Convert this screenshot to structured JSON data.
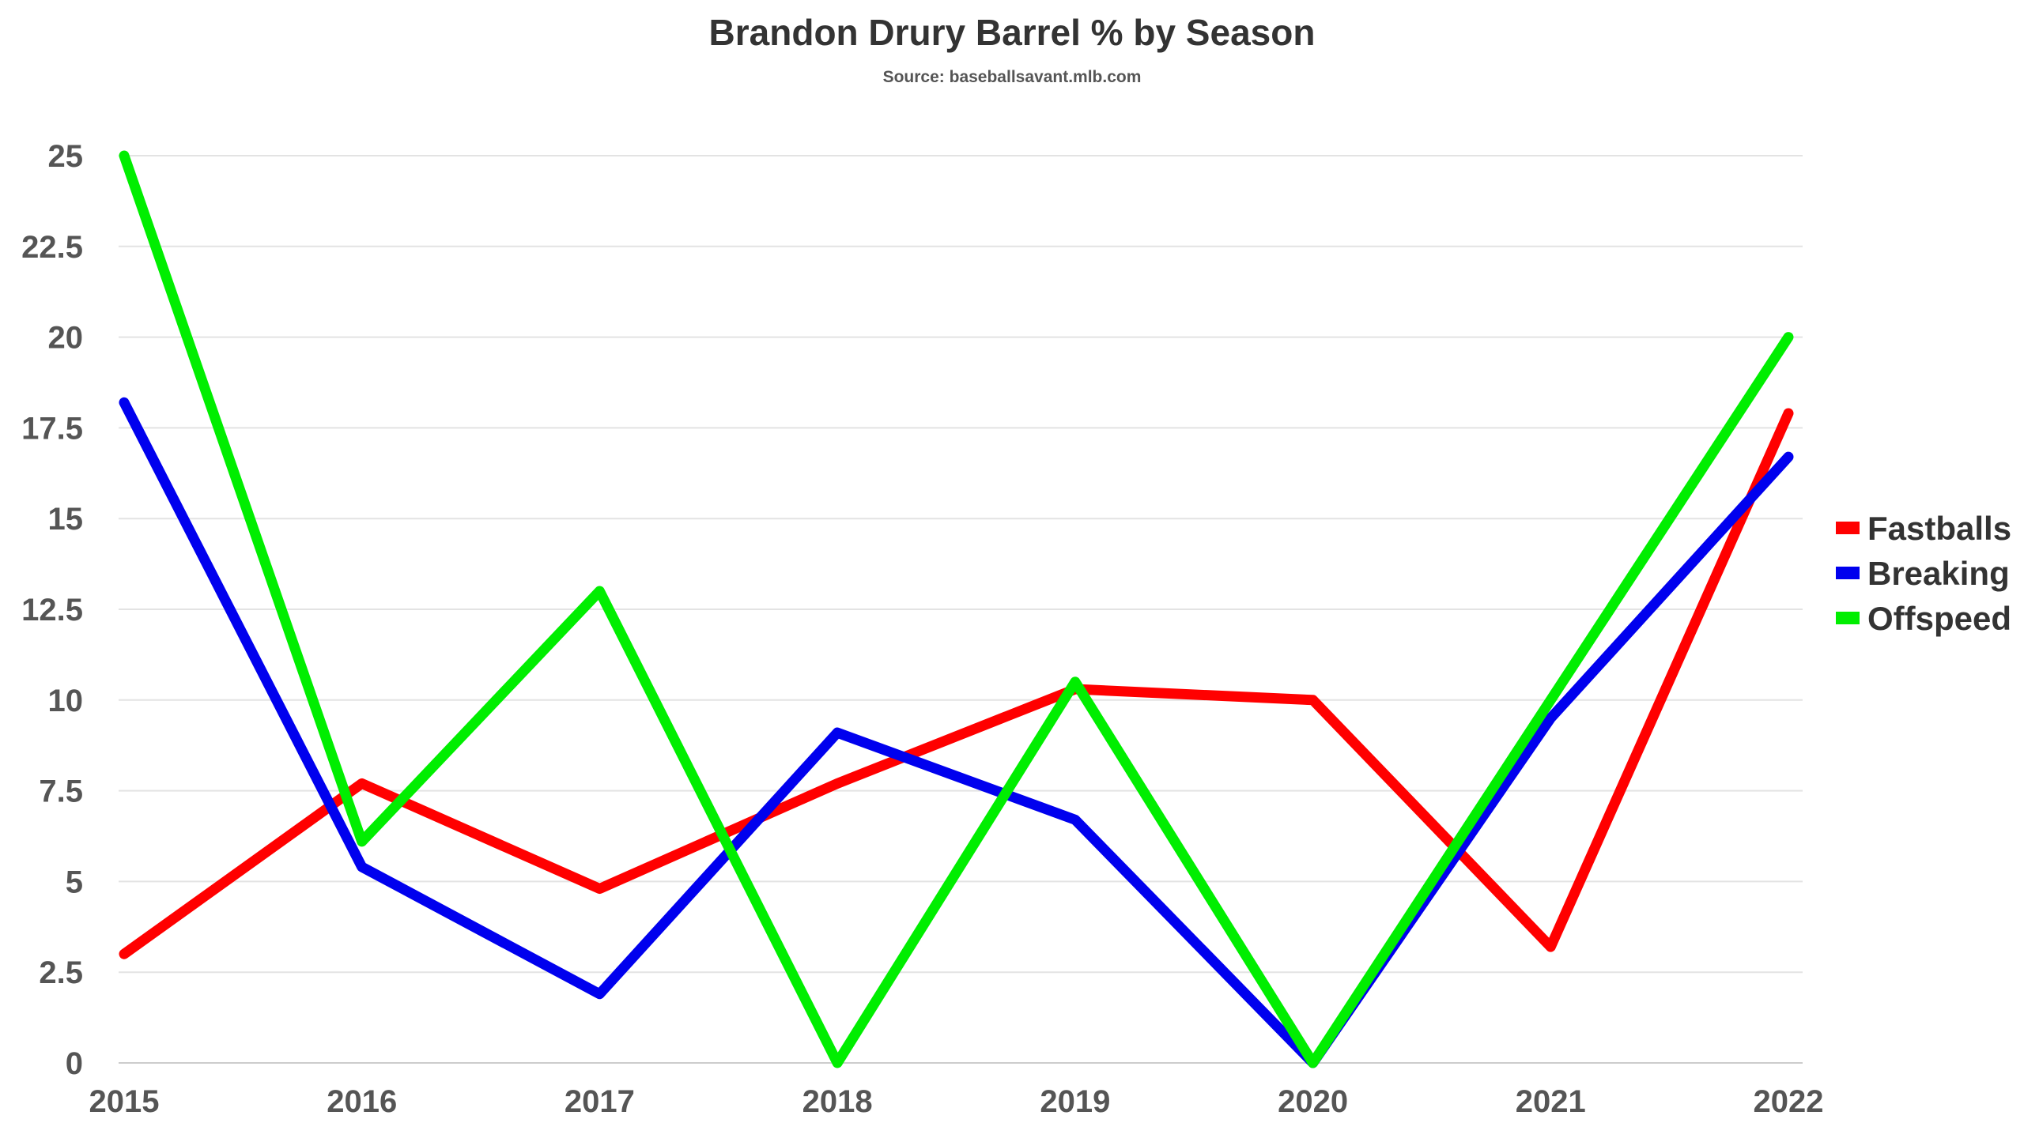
{
  "chart_data": {
    "type": "line",
    "title": "Brandon Drury Barrel % by Season",
    "subtitle": "Source: baseballsavant.mlb.com",
    "xlabel": "",
    "ylabel": "",
    "x": [
      "2015",
      "2016",
      "2017",
      "2018",
      "2019",
      "2020",
      "2021",
      "2022"
    ],
    "ylim": [
      0,
      25
    ],
    "yticks": [
      "0",
      "2.5",
      "5",
      "7.5",
      "10",
      "12.5",
      "15",
      "17.5",
      "20",
      "22.5",
      "25"
    ],
    "grid": true,
    "legend_position": "right",
    "series": [
      {
        "name": "Fastballs",
        "color": "#ff0000",
        "values": [
          3.0,
          7.7,
          4.8,
          7.7,
          10.3,
          10.0,
          3.2,
          17.9
        ]
      },
      {
        "name": "Breaking",
        "color": "#0000ee",
        "values": [
          18.2,
          5.4,
          1.9,
          9.1,
          6.7,
          0.0,
          9.5,
          16.7
        ]
      },
      {
        "name": "Offspeed",
        "color": "#00ee00",
        "values": [
          25.0,
          6.1,
          13.0,
          0.0,
          10.5,
          0.0,
          10.0,
          20.0
        ]
      }
    ]
  }
}
